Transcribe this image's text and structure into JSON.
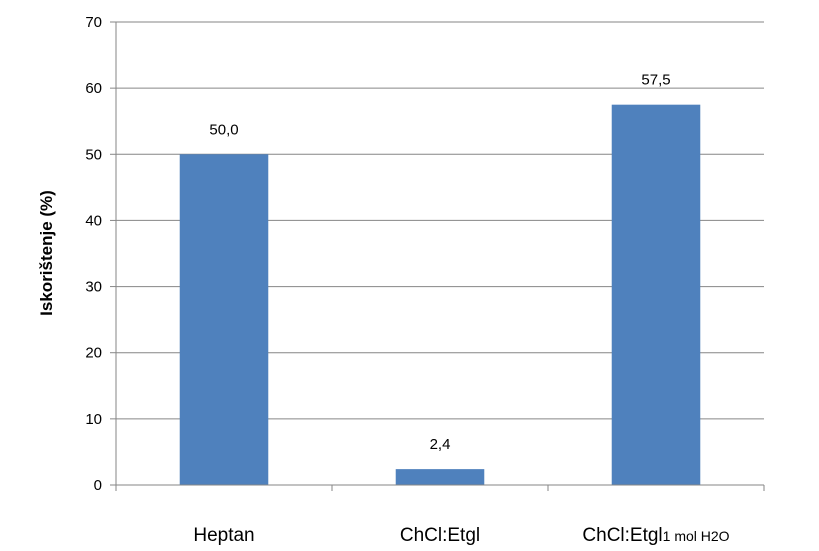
{
  "chart_data": {
    "type": "bar",
    "categories": [
      {
        "main": "Heptan",
        "sub": ""
      },
      {
        "main": "ChCl:Etgl",
        "sub": ""
      },
      {
        "main": "ChCl:Etgl",
        "sub": "1 mol H2O"
      }
    ],
    "values": [
      50.0,
      2.4,
      57.5
    ],
    "data_labels": [
      "50,0",
      "2,4",
      "57,5"
    ],
    "ylabel": "Iskorištenje (%)",
    "xlabel": "",
    "ylim": [
      0,
      70
    ],
    "yticks": [
      0,
      10,
      20,
      30,
      40,
      50,
      60,
      70
    ],
    "grid": true,
    "bar_color": "#4F81BD",
    "grid_color": "#868686"
  }
}
